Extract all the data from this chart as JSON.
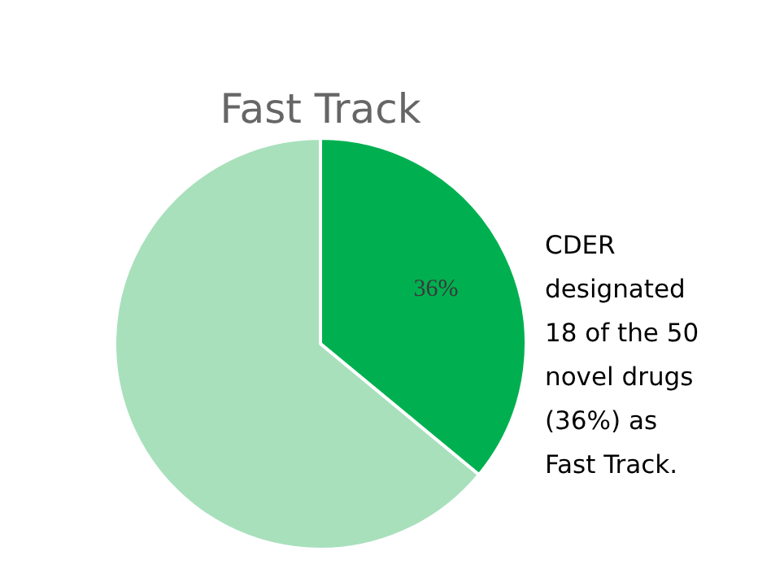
{
  "chart_data": {
    "type": "pie",
    "title": "Fast Track",
    "categories": [
      null,
      null
    ],
    "values": [
      36,
      64
    ],
    "colors": [
      "#00b050",
      "#a8e0bc"
    ],
    "value_labels": [
      "36%",
      null
    ],
    "legend": false,
    "annotations": [
      "CDER\ndesignated\n18 of the 50\nnovel drugs\n(36%) as\nFast Track."
    ]
  }
}
